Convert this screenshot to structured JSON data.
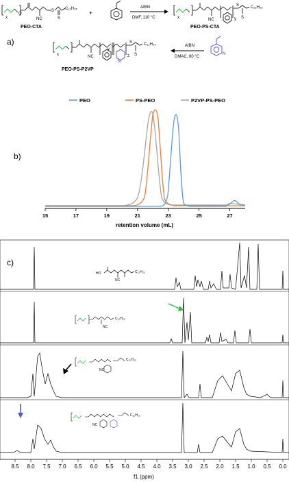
{
  "scheme": {
    "panel_a": "a)",
    "reagent_1": "AIBN",
    "condition_1": "DMF, 110 °C",
    "reagent_2": "AIBN",
    "condition_2": "DMAC, 80 °C",
    "names": [
      "PEO-CTA",
      "PEO-PS-CTA",
      "PEO-PS-P2VP"
    ],
    "plus": "+",
    "sub_x": "x",
    "sub_y": "y",
    "sub_z": "z",
    "nc": "NC",
    "o": "O",
    "s": "S",
    "n": "N",
    "ho": "HO",
    "c12h25": "C₁₂H₂₅"
  },
  "gpc": {
    "panel_b": "b)",
    "xlabel": "retention volume (mL)",
    "xticks": [
      "15",
      "17",
      "19",
      "21",
      "23",
      "25",
      "27"
    ],
    "legend": [
      "PEO",
      "PS-PEO",
      "P2VP-PS-PEO"
    ],
    "colors": {
      "PEO": "#5b9bd5",
      "PS-PEO": "#ed7d31",
      "P2VP-PS-PEO": "#a5a5a5"
    }
  },
  "nmr": {
    "panel_c": "c)",
    "xlabel": "f1 (ppm)",
    "xticks": [
      "8.5",
      "8.0",
      "7.5",
      "7.0",
      "6.5",
      "6.0",
      "5.5",
      "5.0",
      "4.5",
      "4.0",
      "3.5",
      "3.0",
      "2.5",
      "2.0",
      "1.5",
      "1.0",
      "0.5",
      "0.0"
    ],
    "arrow_colors": {
      "green": "#22c03c",
      "black": "#000000",
      "blue": "#4a5ad6"
    }
  },
  "chart_data": {
    "type": "line",
    "xlabel": "retention volume (mL)",
    "xlim": [
      15,
      28
    ],
    "series": [
      {
        "name": "PEO",
        "peak_x": 23.6,
        "peak_y": 1.0
      },
      {
        "name": "PS-PEO",
        "peak_x": 22.3,
        "peak_y": 1.0
      },
      {
        "name": "P2VP-PS-PEO",
        "peak_x": 22.0,
        "peak_y": 1.0
      }
    ]
  }
}
